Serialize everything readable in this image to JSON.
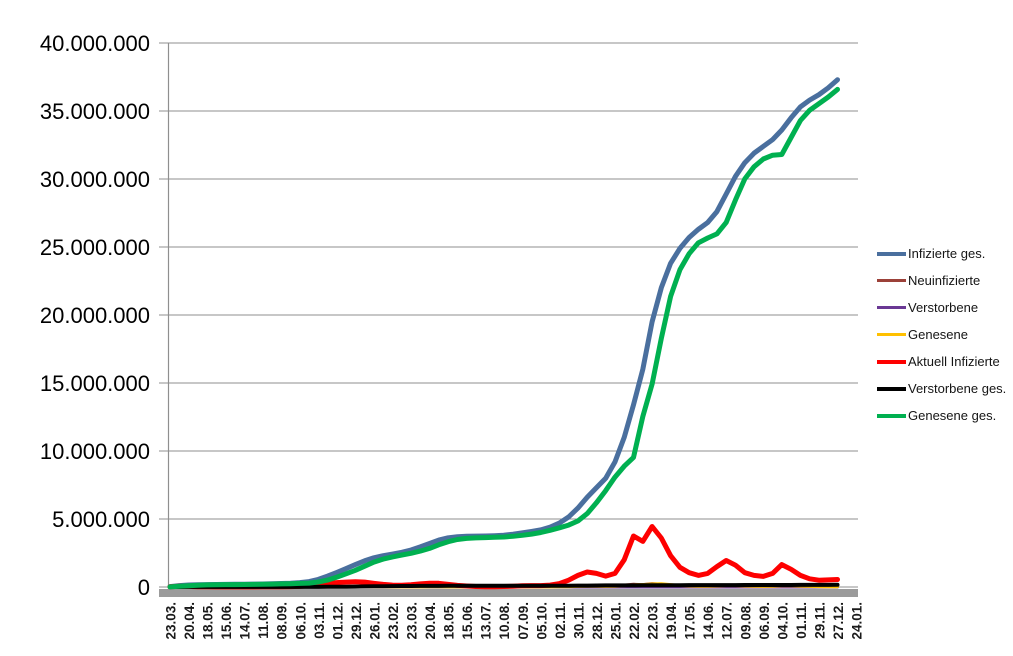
{
  "page": {
    "background": "#ffffff"
  },
  "chart_data": {
    "type": "line",
    "title": "",
    "legend_position": "right",
    "grid": "horizontal",
    "grid_color": "#8f8f8f",
    "band_color": "#9b9b9b",
    "ylim": [
      0,
      40000000
    ],
    "y_tick_labels": [
      "40.000.000",
      "35.000.000",
      "30.000.000",
      "25.000.000",
      "20.000.000",
      "15.000.000",
      "10.000.000",
      "5.000.000",
      "0"
    ],
    "x_tick_labels": [
      "23.03.",
      "20.04.",
      "18.05.",
      "15.06.",
      "14.07.",
      "11.08.",
      "08.09.",
      "06.10.",
      "03.11.",
      "01.12.",
      "29.12.",
      "26.01.",
      "23.02.",
      "23.03.",
      "20.04.",
      "18.05.",
      "15.06.",
      "13.07.",
      "10.08.",
      "07.09.",
      "05.10.",
      "02.11.",
      "30.11.",
      "28.12.",
      "25.01.",
      "22.02.",
      "22.03.",
      "19.04.",
      "17.05.",
      "14.06.",
      "12.07.",
      "09.08.",
      "06.09.",
      "04.10.",
      "01.11.",
      "29.11.",
      "27.12.",
      "24.01."
    ],
    "label_step_weeks": 4,
    "sample_step_weeks": 2,
    "x_total_weeks": 148,
    "value_unit": "millions",
    "series": [
      {
        "name": "Infizierte ges.",
        "color": "#4a6f9e",
        "width": 5,
        "values_mio": [
          0.03,
          0.1,
          0.145,
          0.165,
          0.175,
          0.183,
          0.19,
          0.196,
          0.201,
          0.21,
          0.222,
          0.237,
          0.256,
          0.28,
          0.32,
          0.4,
          0.56,
          0.8,
          1.07,
          1.35,
          1.65,
          1.93,
          2.15,
          2.3,
          2.42,
          2.55,
          2.72,
          2.95,
          3.2,
          3.45,
          3.62,
          3.7,
          3.73,
          3.74,
          3.75,
          3.77,
          3.81,
          3.88,
          3.98,
          4.08,
          4.2,
          4.4,
          4.7,
          5.15,
          5.8,
          6.6,
          7.3,
          8.0,
          9.2,
          11.0,
          13.4,
          16.0,
          19.5,
          22.0,
          23.8,
          24.9,
          25.7,
          26.3,
          26.8,
          27.6,
          28.9,
          30.2,
          31.2,
          31.9,
          32.4,
          32.9,
          33.6,
          34.5,
          35.3,
          35.8,
          36.2,
          36.7,
          37.3
        ]
      },
      {
        "name": "Neuinfizierte",
        "color": "#9c4139",
        "width": 3,
        "values_mio": [
          0.005,
          0.006,
          0.004,
          0.003,
          0.002,
          0.002,
          0.001,
          0.001,
          0.001,
          0.001,
          0.002,
          0.002,
          0.002,
          0.003,
          0.004,
          0.008,
          0.015,
          0.022,
          0.025,
          0.028,
          0.03,
          0.025,
          0.015,
          0.01,
          0.008,
          0.009,
          0.012,
          0.015,
          0.018,
          0.015,
          0.008,
          0.004,
          0.002,
          0.001,
          0.001,
          0.002,
          0.003,
          0.005,
          0.008,
          0.01,
          0.008,
          0.01,
          0.02,
          0.04,
          0.06,
          0.065,
          0.05,
          0.04,
          0.07,
          0.14,
          0.2,
          0.18,
          0.25,
          0.2,
          0.13,
          0.08,
          0.055,
          0.05,
          0.065,
          0.09,
          0.11,
          0.085,
          0.055,
          0.045,
          0.045,
          0.07,
          0.1,
          0.08,
          0.055,
          0.035,
          0.025,
          0.025,
          0.03
        ]
      },
      {
        "name": "Verstorbene",
        "color": "#6a3894",
        "width": 3,
        "values_mio": [
          0.001,
          0.001,
          0.001,
          0.001,
          0.001,
          0.001,
          0.001,
          0.001,
          0.001,
          0.001,
          0.001,
          0.001,
          0.001,
          0.001,
          0.001,
          0.001,
          0.001,
          0.001,
          0.001,
          0.001,
          0.001,
          0.001,
          0.001,
          0.001,
          0.001,
          0.001,
          0.001,
          0.001,
          0.001,
          0.001,
          0.001,
          0.001,
          0.001,
          0.001,
          0.001,
          0.001,
          0.001,
          0.001,
          0.001,
          0.001,
          0.001,
          0.001,
          0.001,
          0.001,
          0.001,
          0.001,
          0.001,
          0.001,
          0.001,
          0.001,
          0.001,
          0.001,
          0.001,
          0.001,
          0.001,
          0.001,
          0.001,
          0.001,
          0.001,
          0.001,
          0.001,
          0.001,
          0.001,
          0.001,
          0.001,
          0.001,
          0.001,
          0.001,
          0.001,
          0.001,
          0.001,
          0.001,
          0.001
        ]
      },
      {
        "name": "Genesene",
        "color": "#ffc000",
        "width": 3,
        "values_mio": [
          0.001,
          0.004,
          0.005,
          0.004,
          0.002,
          0.001,
          0.001,
          0.001,
          0.001,
          0.001,
          0.001,
          0.002,
          0.002,
          0.002,
          0.003,
          0.005,
          0.01,
          0.015,
          0.02,
          0.022,
          0.025,
          0.028,
          0.02,
          0.012,
          0.008,
          0.007,
          0.008,
          0.01,
          0.013,
          0.015,
          0.01,
          0.006,
          0.003,
          0.001,
          0.001,
          0.001,
          0.002,
          0.003,
          0.005,
          0.007,
          0.008,
          0.008,
          0.012,
          0.025,
          0.045,
          0.06,
          0.055,
          0.045,
          0.05,
          0.09,
          0.15,
          0.18,
          0.22,
          0.24,
          0.18,
          0.11,
          0.07,
          0.055,
          0.055,
          0.075,
          0.1,
          0.1,
          0.07,
          0.05,
          0.045,
          0.055,
          0.085,
          0.09,
          0.065,
          0.045,
          0.03,
          0.025,
          0.025
        ]
      },
      {
        "name": "Aktuell Infizierte",
        "color": "#fe0000",
        "width": 5,
        "values_mio": [
          0.025,
          0.05,
          0.045,
          0.025,
          0.015,
          0.01,
          0.008,
          0.007,
          0.007,
          0.009,
          0.012,
          0.017,
          0.021,
          0.028,
          0.045,
          0.1,
          0.18,
          0.28,
          0.32,
          0.36,
          0.39,
          0.36,
          0.27,
          0.19,
          0.14,
          0.13,
          0.17,
          0.23,
          0.28,
          0.27,
          0.2,
          0.12,
          0.07,
          0.04,
          0.025,
          0.022,
          0.035,
          0.06,
          0.09,
          0.1,
          0.1,
          0.14,
          0.25,
          0.5,
          0.85,
          1.1,
          1.0,
          0.8,
          1.0,
          2.0,
          3.75,
          3.35,
          4.45,
          3.6,
          2.3,
          1.45,
          1.05,
          0.85,
          1.0,
          1.5,
          1.95,
          1.6,
          1.05,
          0.85,
          0.78,
          1.0,
          1.65,
          1.3,
          0.85,
          0.6,
          0.5,
          0.52,
          0.55
        ]
      },
      {
        "name": "Verstorbene ges.",
        "color": "#000000",
        "width": 4,
        "values_mio": [
          0.0,
          0.002,
          0.005,
          0.007,
          0.008,
          0.0085,
          0.0088,
          0.0089,
          0.009,
          0.0091,
          0.0092,
          0.0093,
          0.0094,
          0.0095,
          0.0096,
          0.01,
          0.011,
          0.014,
          0.017,
          0.024,
          0.033,
          0.043,
          0.053,
          0.061,
          0.068,
          0.072,
          0.075,
          0.078,
          0.081,
          0.084,
          0.086,
          0.088,
          0.09,
          0.0905,
          0.091,
          0.0915,
          0.092,
          0.0925,
          0.093,
          0.0935,
          0.094,
          0.095,
          0.096,
          0.098,
          0.1,
          0.105,
          0.111,
          0.114,
          0.117,
          0.119,
          0.121,
          0.124,
          0.127,
          0.13,
          0.133,
          0.135,
          0.137,
          0.1385,
          0.14,
          0.141,
          0.142,
          0.143,
          0.144,
          0.1455,
          0.147,
          0.148,
          0.149,
          0.15,
          0.152,
          0.154,
          0.156,
          0.158,
          0.161
        ]
      },
      {
        "name": "Genesene ges.",
        "color": "#00b050",
        "width": 5,
        "values_mio": [
          0.005,
          0.048,
          0.095,
          0.133,
          0.152,
          0.165,
          0.173,
          0.18,
          0.185,
          0.192,
          0.201,
          0.211,
          0.226,
          0.243,
          0.265,
          0.29,
          0.37,
          0.51,
          0.73,
          0.97,
          1.23,
          1.53,
          1.83,
          2.05,
          2.21,
          2.35,
          2.48,
          2.64,
          2.84,
          3.1,
          3.33,
          3.49,
          3.57,
          3.61,
          3.63,
          3.66,
          3.68,
          3.73,
          3.8,
          3.89,
          4.01,
          4.17,
          4.35,
          4.55,
          4.85,
          5.4,
          6.19,
          7.09,
          8.08,
          8.88,
          9.53,
          12.53,
          14.92,
          18.27,
          21.37,
          23.32,
          24.51,
          25.31,
          25.66,
          25.96,
          26.81,
          28.46,
          30.01,
          30.9,
          31.47,
          31.75,
          31.8,
          33.05,
          34.3,
          35.05,
          35.54,
          36.02,
          36.59
        ]
      }
    ]
  }
}
